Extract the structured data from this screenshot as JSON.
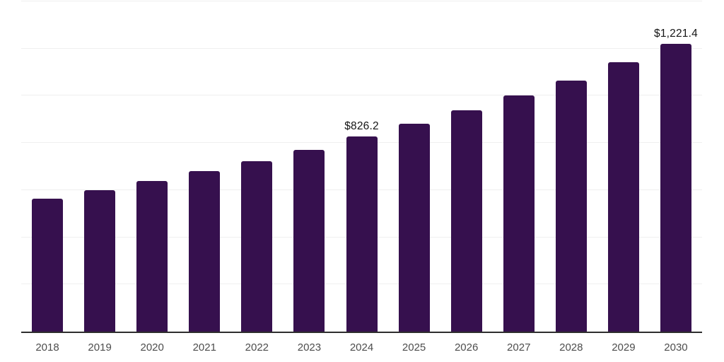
{
  "chart_data": {
    "type": "bar",
    "title": "",
    "xlabel": "",
    "ylabel": "",
    "categories": [
      "2018",
      "2019",
      "2020",
      "2021",
      "2022",
      "2023",
      "2024",
      "2025",
      "2026",
      "2027",
      "2028",
      "2029",
      "2030"
    ],
    "values": [
      562.7,
      598.9,
      637.4,
      680.2,
      723.4,
      771.8,
      826.2,
      880.1,
      938.0,
      1000.8,
      1065.2,
      1141.0,
      1221.4
    ],
    "data_labels": {
      "2024": "$826.2",
      "2030": "$1,221.4"
    },
    "ylim": [
      0,
      1400
    ],
    "gridline_step": 200,
    "grid": "horizontal",
    "y_axis_tick_labels_visible": false,
    "legend_position": "none"
  },
  "colors": {
    "bar": "#36104e",
    "background": "#ffffff",
    "gridline": "#efefef",
    "axis_line": "#2e2e2e",
    "tick_label": "#4d4d4d",
    "data_label": "#141414"
  }
}
